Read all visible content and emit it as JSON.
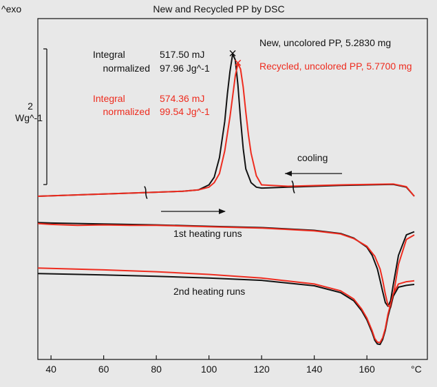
{
  "chart_data": {
    "type": "line",
    "title": "New and Recycled PP by DSC",
    "y_axis_label": "^exo",
    "x_unit": "°C",
    "xlim": [
      35,
      178
    ],
    "x_ticks": [
      40,
      60,
      80,
      100,
      120,
      140,
      160
    ],
    "scale_bar": {
      "value": "2",
      "unit": "Wg^-1"
    },
    "legend": [
      {
        "name": "New, uncolored PP, 5.2830 mg",
        "color": "#111111"
      },
      {
        "name": "Recycled, uncolored PP, 5.7700 mg",
        "color": "#ee2b1e"
      }
    ],
    "integrals": [
      {
        "label": "Integral",
        "value": "517.50 mJ",
        "norm_label": "normalized",
        "norm_value": "97.96 Jg^-1",
        "color": "#111111"
      },
      {
        "label": "Integral",
        "value": "574.36 mJ",
        "norm_label": "normalized",
        "norm_value": "99.54 Jg^-1",
        "color": "#ee2b1e"
      }
    ],
    "annotations": {
      "cooling": "cooling",
      "heating1": "1st heating runs",
      "heating2": "2nd heating runs"
    },
    "integration_limits_c": [
      76,
      132
    ],
    "series": [
      {
        "name": "New, uncolored PP (cooling)",
        "color": "#111111",
        "x": [
          35,
          60,
          80,
          90,
          96,
          100,
          102,
          104,
          106,
          107,
          108,
          109,
          110,
          111,
          112,
          113,
          114,
          116,
          118,
          120,
          130,
          150,
          170,
          175,
          178
        ],
        "y": [
          0.0,
          0.05,
          0.09,
          0.11,
          0.14,
          0.25,
          0.42,
          0.85,
          1.65,
          2.25,
          2.75,
          3.13,
          3.0,
          2.45,
          1.7,
          1.05,
          0.6,
          0.3,
          0.2,
          0.18,
          0.2,
          0.24,
          0.26,
          0.2,
          0.0
        ]
      },
      {
        "name": "Recycled, uncolored PP (cooling)",
        "color": "#ee2b1e",
        "x": [
          35,
          60,
          80,
          90,
          96,
          100,
          102,
          104,
          106,
          108,
          109,
          110,
          111,
          112,
          113,
          114,
          115,
          116,
          118,
          120,
          130,
          150,
          170,
          175,
          178
        ],
        "y": [
          0.0,
          0.05,
          0.09,
          0.11,
          0.14,
          0.2,
          0.3,
          0.5,
          1.0,
          1.75,
          2.2,
          2.65,
          2.92,
          2.8,
          2.4,
          1.85,
          1.35,
          0.95,
          0.45,
          0.25,
          0.22,
          0.25,
          0.27,
          0.21,
          0.0
        ]
      },
      {
        "name": "New, uncolored PP (1st heating)",
        "color": "#111111",
        "x": [
          35,
          40,
          60,
          80,
          100,
          120,
          140,
          150,
          155,
          160,
          162,
          164,
          165,
          166,
          167,
          168,
          169,
          170,
          172,
          175,
          178
        ],
        "y": [
          -0.58,
          -0.59,
          -0.61,
          -0.63,
          -0.66,
          -0.69,
          -0.75,
          -0.82,
          -0.92,
          -1.12,
          -1.3,
          -1.6,
          -1.85,
          -2.1,
          -2.34,
          -2.42,
          -2.3,
          -1.95,
          -1.3,
          -0.85,
          -0.78
        ]
      },
      {
        "name": "Recycled, uncolored PP (1st heating)",
        "color": "#ee2b1e",
        "x": [
          35,
          40,
          50,
          60,
          70,
          80,
          100,
          120,
          140,
          150,
          155,
          160,
          163,
          165,
          166,
          167,
          168,
          169,
          170,
          172,
          175,
          178
        ],
        "y": [
          -0.6,
          -0.62,
          -0.64,
          -0.63,
          -0.64,
          -0.64,
          -0.67,
          -0.7,
          -0.76,
          -0.83,
          -0.93,
          -1.1,
          -1.32,
          -1.6,
          -1.85,
          -2.15,
          -2.4,
          -2.45,
          -2.2,
          -1.5,
          -0.95,
          -0.85
        ]
      },
      {
        "name": "New, uncolored PP (2nd heating)",
        "color": "#111111",
        "x": [
          35,
          60,
          80,
          100,
          120,
          140,
          150,
          155,
          158,
          160,
          162,
          163,
          164,
          165,
          166,
          167,
          168,
          170,
          172,
          175,
          178
        ],
        "y": [
          -1.7,
          -1.73,
          -1.76,
          -1.8,
          -1.85,
          -1.97,
          -2.12,
          -2.3,
          -2.52,
          -2.72,
          -3.0,
          -3.17,
          -3.25,
          -3.26,
          -3.15,
          -2.95,
          -2.65,
          -2.2,
          -2.0,
          -1.96,
          -1.94
        ]
      },
      {
        "name": "Recycled, uncolored PP (2nd heating)",
        "color": "#ee2b1e",
        "x": [
          35,
          60,
          80,
          100,
          120,
          140,
          150,
          155,
          158,
          160,
          162,
          163,
          164,
          165,
          166,
          167,
          168,
          170,
          172,
          175,
          178
        ],
        "y": [
          -1.58,
          -1.62,
          -1.66,
          -1.72,
          -1.8,
          -1.93,
          -2.08,
          -2.26,
          -2.48,
          -2.68,
          -2.96,
          -3.13,
          -3.21,
          -3.22,
          -3.11,
          -2.91,
          -2.6,
          -2.15,
          -1.93,
          -1.88,
          -1.86
        ]
      }
    ]
  }
}
